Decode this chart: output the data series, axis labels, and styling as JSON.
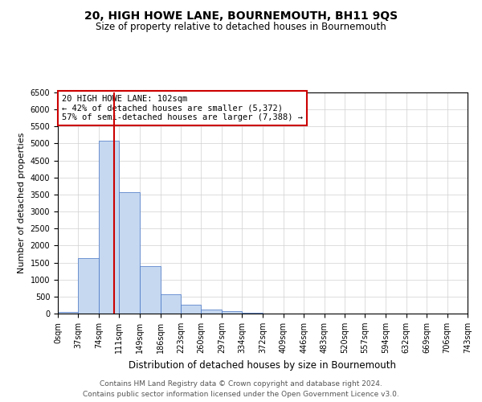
{
  "title": "20, HIGH HOWE LANE, BOURNEMOUTH, BH11 9QS",
  "subtitle": "Size of property relative to detached houses in Bournemouth",
  "xlabel": "Distribution of detached houses by size in Bournemouth",
  "ylabel": "Number of detached properties",
  "footnote1": "Contains HM Land Registry data © Crown copyright and database right 2024.",
  "footnote2": "Contains public sector information licensed under the Open Government Licence v3.0.",
  "annotation_line1": "20 HIGH HOWE LANE: 102sqm",
  "annotation_line2": "← 42% of detached houses are smaller (5,372)",
  "annotation_line3": "57% of semi-detached houses are larger (7,388) →",
  "property_size": 102,
  "bin_edges": [
    0,
    37,
    74,
    111,
    149,
    186,
    223,
    260,
    297,
    334,
    372,
    409,
    446,
    483,
    520,
    557,
    594,
    632,
    669,
    706,
    743
  ],
  "bar_values": [
    50,
    1620,
    5080,
    3580,
    1390,
    570,
    250,
    120,
    80,
    30,
    0,
    0,
    0,
    0,
    0,
    0,
    0,
    0,
    0,
    0
  ],
  "bar_color": "#c5d8f0",
  "bar_edge_color": "#4472c4",
  "red_line_color": "#cc0000",
  "annotation_box_color": "#cc0000",
  "ylim": [
    0,
    6500
  ],
  "yticks": [
    0,
    500,
    1000,
    1500,
    2000,
    2500,
    3000,
    3500,
    4000,
    4500,
    5000,
    5500,
    6000,
    6500
  ],
  "background_color": "#ffffff",
  "grid_color": "#d0d0d0",
  "title_fontsize": 10,
  "subtitle_fontsize": 8.5,
  "axis_label_fontsize": 8,
  "tick_fontsize": 7,
  "annotation_fontsize": 7.5,
  "footnote_fontsize": 6.5
}
